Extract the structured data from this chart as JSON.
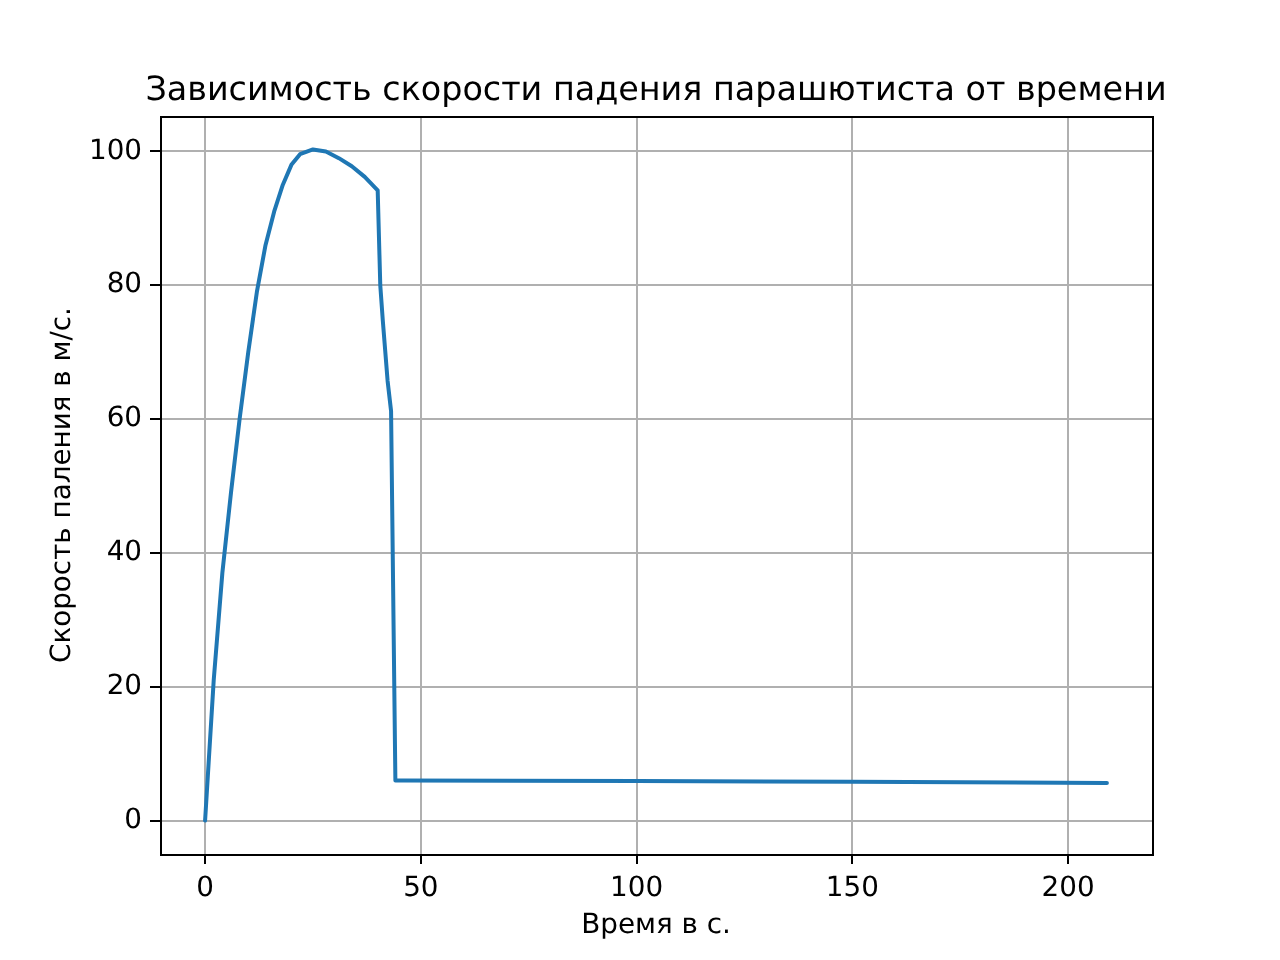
{
  "chart_data": {
    "type": "line",
    "title": "Зависимость скорости падения парашютиста от времени",
    "xlabel": "Время в с.",
    "ylabel": "Скорость паления в м/с.",
    "x": [
      0,
      2,
      4,
      6,
      8,
      10,
      12,
      14,
      16,
      18,
      20,
      22,
      25,
      28,
      31,
      34,
      37,
      40.0,
      40.6,
      41.2,
      42.3,
      43.1,
      44.1,
      46,
      100,
      150,
      209
    ],
    "series": [
      {
        "color": "#1f77b4",
        "values": [
          0,
          21,
          37,
          49,
          60,
          70,
          79,
          86,
          91,
          95,
          98,
          99.6,
          100.3,
          100,
          99,
          97.8,
          96.2,
          94.2,
          80,
          74.6,
          65.7,
          61.2,
          6.0,
          6.0,
          5.9,
          5.8,
          5.6
        ]
      }
    ],
    "xlim": [
      -10.45,
      219.45
    ],
    "ylim": [
      -5,
      105.3
    ],
    "xticks": [
      0,
      50,
      100,
      150,
      200
    ],
    "yticks": [
      0,
      20,
      40,
      60,
      80,
      100
    ],
    "grid": true
  }
}
